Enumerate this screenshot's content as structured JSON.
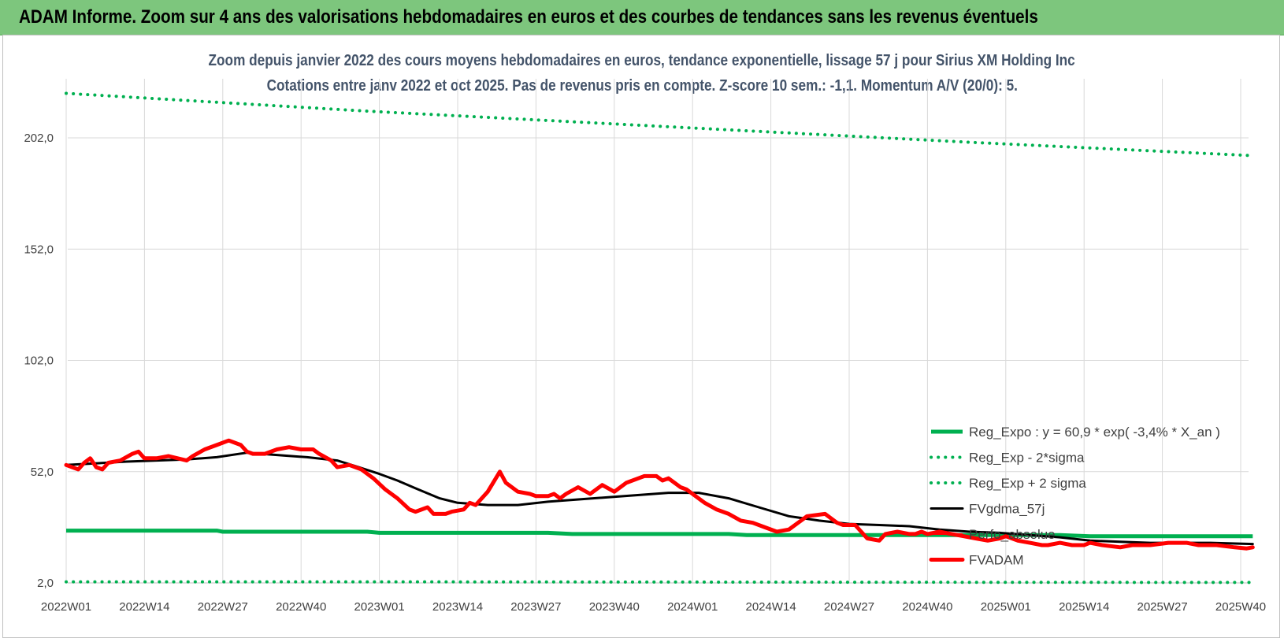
{
  "banner": {
    "title": "ADAM Informe. Zoom sur 4 ans des valorisations hebdomadaires en euros et des courbes de tendances sans les revenus éventuels"
  },
  "colors": {
    "banner": "#7dc67d",
    "reg": "#00b050",
    "fvgdma": "#000000",
    "fvadam": "#ff0000",
    "grid": "#d9d9d9"
  },
  "chart_data": {
    "type": "line",
    "title": "Zoom depuis janvier 2022 des cours moyens hebdomadaires en euros, tendance exponentielle, lissage 57 j pour Sirius XM Holding Inc",
    "subtitle": "Cotations entre janv 2022 et oct 2025. Pas de revenus pris en compte. Z-score 10 sem.: -1,1. Momentum A/V (20/0): 5.",
    "xlabel": "",
    "ylabel": "",
    "ylim": [
      2,
      222
    ],
    "yticks": [
      "2,0",
      "52,0",
      "102,0",
      "152,0",
      "202,0"
    ],
    "ytick_values": [
      2,
      52,
      102,
      152,
      202
    ],
    "xlim": [
      0,
      197
    ],
    "xticks": [
      "2022W01",
      "2022W14",
      "2022W27",
      "2022W40",
      "2023W01",
      "2023W14",
      "2023W27",
      "2023W40",
      "2024W01",
      "2024W14",
      "2024W27",
      "2024W40",
      "2025W01",
      "2025W14",
      "2025W27",
      "2025W40"
    ],
    "xtick_index": [
      0,
      13,
      26,
      39,
      52,
      65,
      78,
      91,
      104,
      117,
      130,
      143,
      156,
      169,
      182,
      195
    ],
    "legend_position": "bottom-right",
    "series": [
      {
        "name": "Reg_Expo : y = 60,9 * exp( -3,4% *  X_an )",
        "style": "solid",
        "color": "#00b050",
        "x": [
          0,
          10,
          20,
          25,
          26,
          40,
          50,
          52,
          60,
          70,
          80,
          84,
          90,
          100,
          110,
          113,
          130,
          150,
          160,
          165,
          170,
          180,
          190,
          197
        ],
        "y": [
          25.5,
          25.5,
          25.5,
          25.5,
          25,
          25,
          25,
          24.5,
          24.5,
          24.5,
          24.5,
          24,
          24,
          24,
          24,
          23.5,
          23.5,
          23.5,
          23.5,
          23.5,
          23,
          23,
          23,
          23
        ]
      },
      {
        "name": "Reg_Exp - 2*sigma",
        "style": "dotted",
        "color": "#00b050",
        "x": [
          0,
          50,
          100,
          150,
          197
        ],
        "y": [
          2.5,
          2.5,
          2.4,
          2.3,
          2.2
        ]
      },
      {
        "name": "Reg_Exp + 2 sigma",
        "style": "dotted",
        "color": "#00b050",
        "x": [
          0,
          50,
          100,
          150,
          197
        ],
        "y": [
          222,
          214,
          207,
          200,
          194
        ]
      },
      {
        "name": "FVgdma_57j",
        "style": "solid",
        "color": "#000000",
        "x": [
          0,
          10,
          20,
          25,
          30,
          35,
          40,
          45,
          48,
          52,
          55,
          58,
          62,
          65,
          70,
          75,
          80,
          90,
          100,
          105,
          110,
          115,
          120,
          125,
          130,
          135,
          140,
          145,
          150,
          155,
          160,
          165,
          170,
          175,
          180,
          185,
          190,
          197
        ],
        "y": [
          55,
          56.5,
          57.5,
          58.5,
          60.5,
          59.5,
          58.5,
          57,
          54.5,
          51,
          48,
          44.5,
          40,
          38,
          37,
          37,
          38.5,
          40.5,
          42.5,
          42.5,
          40,
          36,
          32,
          30,
          28.5,
          28,
          27.5,
          26,
          25,
          24.5,
          23.5,
          22.5,
          21,
          20.5,
          20,
          20,
          20,
          19.5
        ]
      },
      {
        "name": "Perfo_absolue",
        "style": "legend-only",
        "color": "#ff0000",
        "x": [],
        "y": []
      },
      {
        "name": "FVADAM",
        "style": "solid",
        "color": "#ff0000",
        "x": [
          0,
          2,
          3,
          4,
          5,
          6,
          7,
          9,
          11,
          12,
          13,
          15,
          17,
          20,
          21,
          23,
          25,
          27,
          29,
          30,
          31,
          33,
          35,
          37,
          39,
          41,
          42,
          44,
          45,
          47,
          49,
          51,
          53,
          55,
          57,
          58,
          60,
          61,
          63,
          64,
          66,
          67,
          68,
          70,
          72,
          73,
          75,
          77,
          78,
          80,
          81,
          82,
          83,
          85,
          87,
          89,
          91,
          93,
          95,
          96,
          98,
          99,
          100,
          101,
          102,
          103,
          104,
          106,
          108,
          110,
          112,
          114,
          116,
          118,
          120,
          123,
          126,
          128,
          129,
          131,
          132,
          133,
          135,
          136,
          138,
          140,
          141,
          142,
          143,
          145,
          147,
          149,
          151,
          153,
          155,
          156,
          158,
          160,
          162,
          163,
          165,
          167,
          169,
          170,
          172,
          175,
          177,
          180,
          183,
          186,
          188,
          191,
          194,
          196,
          197
        ],
        "y": [
          55,
          53,
          56,
          58,
          54,
          53,
          56,
          57,
          60,
          61,
          58,
          58,
          59,
          57,
          59,
          62,
          64,
          66,
          64,
          61,
          60,
          60,
          62,
          63,
          62,
          62,
          60,
          57,
          54,
          55,
          53,
          49,
          44,
          40,
          35,
          34,
          36,
          33,
          33,
          34,
          35,
          38,
          37,
          43,
          52,
          47,
          43,
          42,
          41,
          41,
          42,
          40,
          42,
          45,
          42,
          46,
          43,
          47,
          49,
          50,
          50,
          48,
          49,
          47,
          45,
          44,
          42,
          38,
          35,
          33,
          30,
          29,
          27,
          25,
          26,
          32,
          33,
          29,
          28,
          28,
          25,
          22,
          21,
          24,
          25,
          24,
          24,
          25,
          24,
          25,
          24,
          23,
          22,
          21,
          22,
          23,
          21,
          20,
          19,
          19,
          20,
          19,
          19,
          20,
          19,
          18,
          19,
          19,
          20,
          20,
          19,
          19,
          18,
          17.5,
          18
        ]
      }
    ]
  }
}
